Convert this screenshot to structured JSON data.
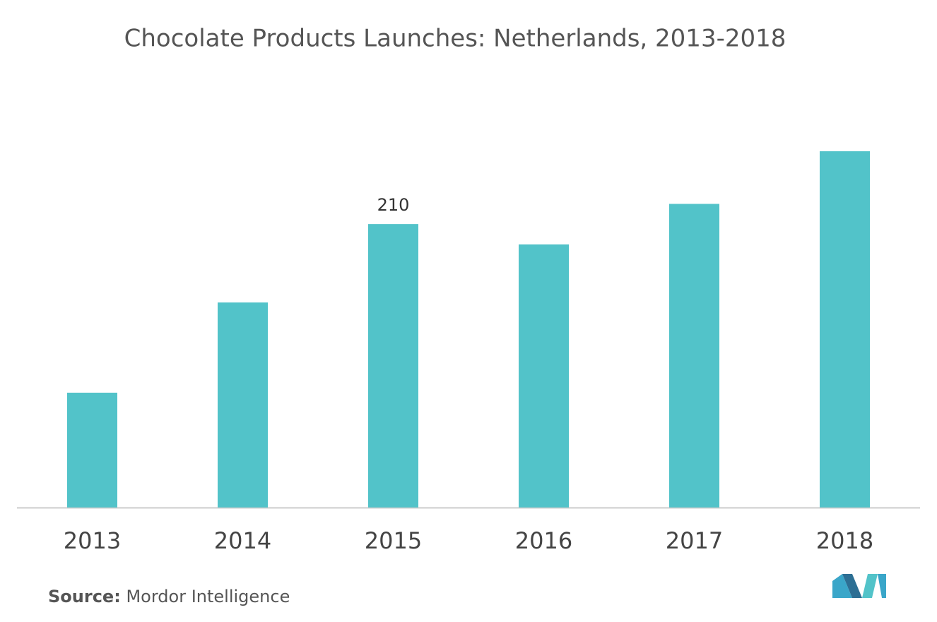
{
  "chart_data": {
    "type": "bar",
    "title": "Chocolate Products Launches: Netherlands, 2013-2018",
    "categories": [
      "2013",
      "2014",
      "2015",
      "2016",
      "2017",
      "2018"
    ],
    "values": [
      85,
      152,
      210,
      195,
      225,
      264
    ],
    "value_labels": [
      null,
      null,
      "210",
      null,
      null,
      null
    ],
    "color": "#52c3c9",
    "source_label": "Source:",
    "source": "Mordor Intelligence"
  }
}
